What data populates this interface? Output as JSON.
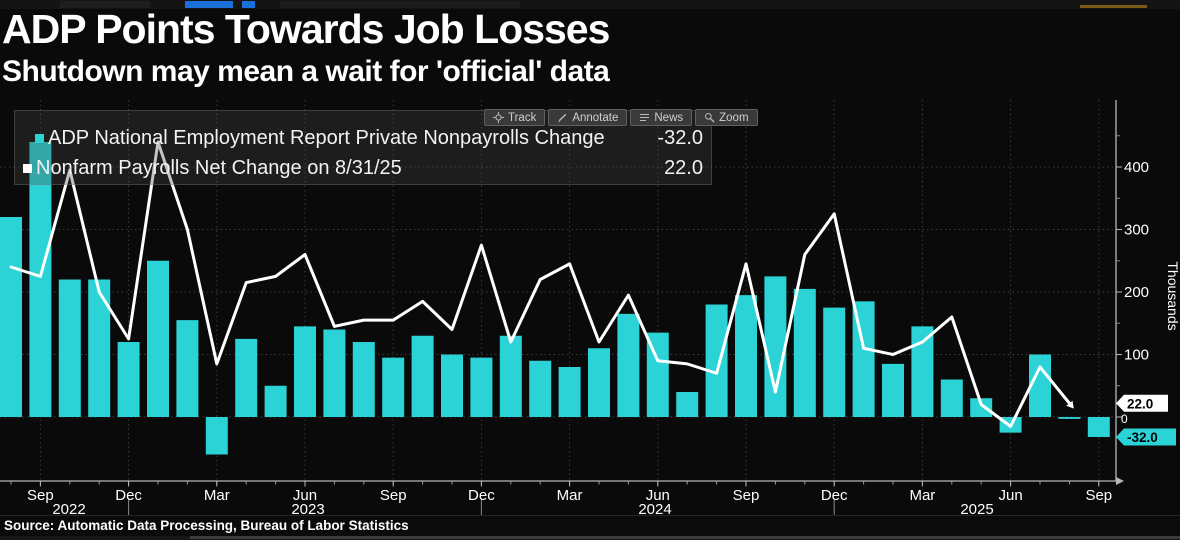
{
  "header": {
    "title": "ADP Points Towards Job Losses",
    "subtitle": "Shutdown may mean a wait for 'official' data"
  },
  "toolbar": {
    "buttons": [
      {
        "label": "Track",
        "icon": "track-icon"
      },
      {
        "label": "Annotate",
        "icon": "annotate-icon"
      },
      {
        "label": "News",
        "icon": "news-icon"
      },
      {
        "label": "Zoom",
        "icon": "zoom-icon"
      }
    ]
  },
  "legend": {
    "items": [
      {
        "label": "ADP National Employment Report Private Nonpayrolls Change",
        "value": "-32.0",
        "swatch": "#2BD3D6"
      },
      {
        "label": "Nonfarm Payrolls Net Change on 8/31/25",
        "value": "22.0",
        "swatch": "#FFFFFF"
      }
    ]
  },
  "source": {
    "text": "Source: Automatic Data Processing, Bureau of Labor Statistics"
  },
  "chart_data": {
    "type": "bar",
    "title": "ADP Points Towards Job Losses",
    "ylabel": "Thousands",
    "ylim": [
      -100,
      505
    ],
    "yticks": [
      0,
      100,
      200,
      300,
      400
    ],
    "yticks_minor": [
      50,
      150,
      250,
      350,
      450
    ],
    "grid": true,
    "legend_position": "top-left",
    "categories": [
      "Aug 2022",
      "Sep 2022",
      "Oct 2022",
      "Nov 2022",
      "Dec 2022",
      "Jan 2023",
      "Feb 2023",
      "Mar 2023",
      "Apr 2023",
      "May 2023",
      "Jun 2023",
      "Jul 2023",
      "Aug 2023",
      "Sep 2023",
      "Oct 2023",
      "Nov 2023",
      "Dec 2023",
      "Jan 2024",
      "Feb 2024",
      "Mar 2024",
      "Apr 2024",
      "May 2024",
      "Jun 2024",
      "Jul 2024",
      "Aug 2024",
      "Sep 2024",
      "Oct 2024",
      "Nov 2024",
      "Dec 2024",
      "Jan 2025",
      "Feb 2025",
      "Mar 2025",
      "Apr 2025",
      "May 2025",
      "Jun 2025",
      "Jul 2025",
      "Aug 2025",
      "Sep 2025"
    ],
    "series": [
      {
        "name": "ADP National Employment Report Private Nonpayrolls Change",
        "type": "bar",
        "color": "#2BD3D6",
        "latest_value": -32.0,
        "values": [
          320,
          440,
          220,
          220,
          120,
          250,
          155,
          -60,
          125,
          50,
          145,
          140,
          120,
          95,
          130,
          100,
          95,
          130,
          90,
          80,
          110,
          165,
          135,
          40,
          180,
          195,
          225,
          205,
          175,
          185,
          85,
          145,
          60,
          30,
          -25,
          100,
          -3,
          -32
        ]
      },
      {
        "name": "Nonfarm Payrolls Net Change on 8/31/25",
        "type": "line",
        "color": "#FFFFFF",
        "latest_value": 22.0,
        "values": [
          240,
          225,
          395,
          200,
          125,
          440,
          300,
          85,
          215,
          225,
          260,
          145,
          155,
          155,
          185,
          140,
          275,
          120,
          220,
          245,
          120,
          195,
          90,
          85,
          70,
          245,
          40,
          260,
          325,
          110,
          100,
          120,
          160,
          20,
          -15,
          80,
          22,
          null
        ]
      }
    ],
    "x_quarter_ticks": [
      {
        "index": 1,
        "label": "Sep"
      },
      {
        "index": 4,
        "label": "Dec"
      },
      {
        "index": 7,
        "label": "Mar"
      },
      {
        "index": 10,
        "label": "Jun"
      },
      {
        "index": 13,
        "label": "Sep"
      },
      {
        "index": 16,
        "label": "Dec"
      },
      {
        "index": 19,
        "label": "Mar"
      },
      {
        "index": 22,
        "label": "Jun"
      },
      {
        "index": 25,
        "label": "Sep"
      },
      {
        "index": 28,
        "label": "Dec"
      },
      {
        "index": 31,
        "label": "Mar"
      },
      {
        "index": 34,
        "label": "Jun"
      },
      {
        "index": 37,
        "label": "Sep"
      }
    ],
    "year_labels": [
      {
        "text": "2022",
        "x": 69
      },
      {
        "text": "2023",
        "x": 308
      },
      {
        "text": "2024",
        "x": 655
      },
      {
        "text": "2025",
        "x": 977
      }
    ],
    "year_separator_indices": [
      4,
      16,
      28
    ],
    "axis_flags": [
      {
        "text": "22.0",
        "value": 22,
        "bg": "#FFFFFF",
        "fg": "#000000",
        "width": 44
      },
      {
        "text": "-32.0",
        "value": -32,
        "bg": "#2BD3D6",
        "fg": "#000000",
        "width": 52
      }
    ],
    "zero_label": "0",
    "colors": {
      "grid": "#3c3c3c",
      "axis": "#b8b8b8",
      "tick_text": "#ffffff"
    }
  }
}
